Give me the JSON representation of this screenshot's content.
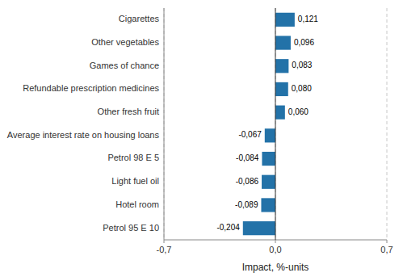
{
  "chart_data": {
    "type": "bar",
    "orientation": "horizontal",
    "categories": [
      "Petrol 95 E 10",
      "Hotel room",
      "Light fuel oil",
      "Petrol 98 E 5",
      "Average interest rate on housing loans",
      "Other fresh fruit",
      "Refundable prescription medicines",
      "Games of chance",
      "Other vegetables",
      "Cigarettes"
    ],
    "values": [
      -0.204,
      -0.089,
      -0.086,
      -0.084,
      -0.067,
      0.06,
      0.08,
      0.083,
      0.096,
      0.121
    ],
    "value_labels": [
      "-0,204",
      "-0,089",
      "-0,086",
      "-0,084",
      "-0,067",
      "0,060",
      "0,080",
      "0,083",
      "0,096",
      "0,121"
    ],
    "data_labels": true,
    "color": "#2372a8",
    "xlabel": "Impact, %-units",
    "xlim": [
      -0.7,
      0.7
    ],
    "xticks": [
      {
        "value": -0.7,
        "label": "-0,7"
      },
      {
        "value": 0.0,
        "label": "0,0"
      },
      {
        "value": 0.7,
        "label": "0,7"
      }
    ],
    "grid": true
  }
}
